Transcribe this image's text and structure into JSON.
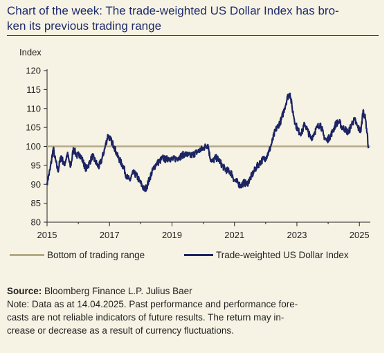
{
  "title": {
    "line1": "Chart of the week: The trade-weighted US Dollar Index has bro-",
    "line2": "ken its previous trading range"
  },
  "chart_data": {
    "type": "line",
    "ylabel": "Index",
    "ylim": [
      80,
      120
    ],
    "y_ticks": [
      80,
      85,
      90,
      95,
      100,
      105,
      110,
      115,
      120
    ],
    "xlim": [
      2015.0,
      2025.35
    ],
    "x_ticks": [
      2015,
      2017,
      2019,
      2021,
      2023,
      2025
    ],
    "x_tick_labels": [
      "2015",
      "2017",
      "2019",
      "2021",
      "2023",
      "2025"
    ],
    "series": [
      {
        "name": "Bottom of trading range",
        "color": "#b5aa86",
        "type": "hline",
        "value": 100
      },
      {
        "name": "Trade-weighted US Dollar Index",
        "color": "#1c2463",
        "x": [
          2015.0,
          2015.1,
          2015.2,
          2015.25,
          2015.35,
          2015.45,
          2015.55,
          2015.65,
          2015.75,
          2015.85,
          2015.95,
          2016.05,
          2016.15,
          2016.25,
          2016.35,
          2016.45,
          2016.55,
          2016.65,
          2016.75,
          2016.85,
          2016.95,
          2017.05,
          2017.15,
          2017.25,
          2017.35,
          2017.45,
          2017.55,
          2017.65,
          2017.75,
          2017.85,
          2017.95,
          2018.05,
          2018.12,
          2018.2,
          2018.3,
          2018.4,
          2018.5,
          2018.6,
          2018.7,
          2018.8,
          2018.9,
          2019.0,
          2019.2,
          2019.4,
          2019.6,
          2019.8,
          2020.0,
          2020.15,
          2020.22,
          2020.3,
          2020.4,
          2020.5,
          2020.6,
          2020.7,
          2020.8,
          2020.9,
          2021.0,
          2021.1,
          2021.2,
          2021.3,
          2021.4,
          2021.5,
          2021.6,
          2021.7,
          2021.8,
          2021.9,
          2022.0,
          2022.1,
          2022.2,
          2022.3,
          2022.4,
          2022.5,
          2022.6,
          2022.7,
          2022.78,
          2022.85,
          2022.95,
          2023.05,
          2023.15,
          2023.25,
          2023.35,
          2023.45,
          2023.55,
          2023.65,
          2023.75,
          2023.85,
          2023.95,
          2024.05,
          2024.15,
          2024.25,
          2024.35,
          2024.45,
          2024.55,
          2024.65,
          2024.75,
          2024.85,
          2024.95,
          2025.05,
          2025.12,
          2025.2,
          2025.25,
          2025.29
        ],
        "values": [
          90.5,
          94,
          99.5,
          97,
          93.5,
          97.5,
          95,
          98,
          94.5,
          99.5,
          97.5,
          98,
          96,
          94,
          95.5,
          97.5,
          96,
          94.5,
          96.5,
          99.5,
          103,
          101.5,
          100,
          97.5,
          96,
          94.5,
          92,
          91,
          93,
          92.5,
          91,
          89.5,
          88.5,
          89.5,
          92,
          94,
          95.5,
          96,
          97,
          96.5,
          97,
          96.5,
          97,
          98,
          97.5,
          98.5,
          99.5,
          100.5,
          97,
          96,
          97,
          96.5,
          95,
          94,
          93.5,
          93,
          91,
          90.5,
          89.5,
          90.5,
          90,
          91.5,
          93,
          94.5,
          95.5,
          96.5,
          97,
          98.5,
          101,
          104,
          105.5,
          107,
          110,
          113,
          114,
          110,
          106,
          104,
          103.5,
          106,
          104,
          102,
          103.5,
          105,
          106,
          103,
          101.5,
          102.5,
          104,
          106,
          106.5,
          105,
          104.5,
          103.5,
          106,
          107,
          105,
          104,
          109.5,
          107,
          103.5,
          99.5
        ]
      }
    ],
    "legend_placement": "bottom"
  },
  "notes": {
    "source_label": "Source:",
    "source_text": " Bloomberg Finance L.P. Julius Baer",
    "note_line1": "Note: Data as at 14.04.2025. Past performance and performance fore-",
    "note_line2": "casts are not reliable indicators of future results. The return may in-",
    "note_line3": "crease or decrease as a result of currency fluctuations."
  }
}
